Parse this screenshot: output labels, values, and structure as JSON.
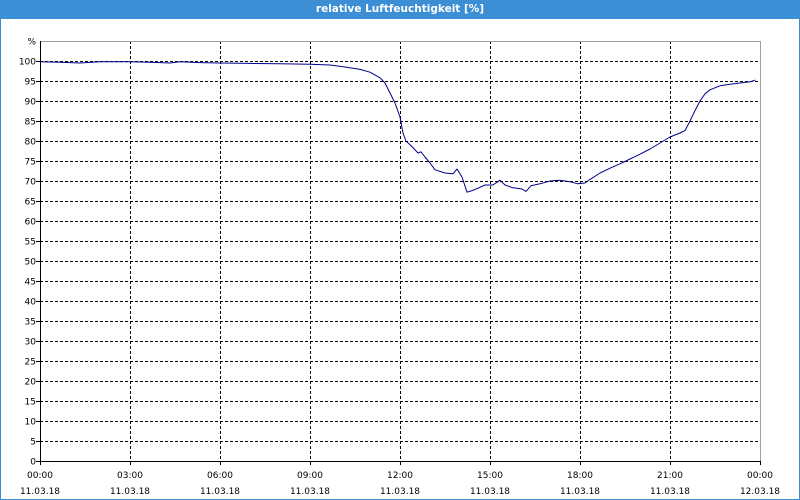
{
  "colors": {
    "title_bar": "#3c8fd4",
    "title_text": "#ffffff"
  },
  "chart_data": {
    "type": "line",
    "title": "relative Luftfeuchtigkeit [%]",
    "xlabel": "",
    "ylabel": "%",
    "xlim": [
      "11.03.18 00:00",
      "12.03.18 00:00"
    ],
    "ylim": [
      0,
      105
    ],
    "grid": true,
    "grid_style": "dashed",
    "yticks": [
      0,
      5,
      10,
      15,
      20,
      25,
      30,
      35,
      40,
      45,
      50,
      55,
      60,
      65,
      70,
      75,
      80,
      85,
      90,
      95,
      100
    ],
    "xticks": [
      {
        "time": "00:00",
        "date": "11.03.18"
      },
      {
        "time": "03:00",
        "date": "11.03.18"
      },
      {
        "time": "06:00",
        "date": "11.03.18"
      },
      {
        "time": "09:00",
        "date": "11.03.18"
      },
      {
        "time": "12:00",
        "date": "11.03.18"
      },
      {
        "time": "15:00",
        "date": "11.03.18"
      },
      {
        "time": "18:00",
        "date": "11.03.18"
      },
      {
        "time": "21:00",
        "date": "11.03.18"
      },
      {
        "time": "00:00",
        "date": "12.03.18"
      }
    ],
    "series": [
      {
        "color": "#00008b",
        "x": [
          "11.03.18 00:00",
          "11.03.18 00:40",
          "11.03.18 01:20",
          "11.03.18 02:00",
          "11.03.18 03:00",
          "11.03.18 03:40",
          "11.03.18 04:20",
          "11.03.18 04:40",
          "11.03.18 05:20",
          "11.03.18 06:00",
          "11.03.18 07:00",
          "11.03.18 08:00",
          "11.03.18 09:00",
          "11.03.18 09:40",
          "11.03.18 10:10",
          "11.03.18 10:40",
          "11.03.18 11:00",
          "11.03.18 11:20",
          "11.03.18 11:30",
          "11.03.18 11:40",
          "11.03.18 11:50",
          "11.03.18 12:00",
          "11.03.18 12:06",
          "11.03.18 12:12",
          "11.03.18 12:24",
          "11.03.18 12:36",
          "11.03.18 12:42",
          "11.03.18 12:50",
          "11.03.18 13:00",
          "11.03.18 13:10",
          "11.03.18 13:30",
          "11.03.18 13:46",
          "11.03.18 13:54",
          "11.03.18 14:04",
          "11.03.18 14:14",
          "11.03.18 14:24",
          "11.03.18 14:36",
          "11.03.18 14:50",
          "11.03.18 15:06",
          "11.03.18 15:20",
          "11.03.18 15:30",
          "11.03.18 15:46",
          "11.03.18 16:04",
          "11.03.18 16:12",
          "11.03.18 16:22",
          "11.03.18 16:40",
          "11.03.18 17:00",
          "11.03.18 17:20",
          "11.03.18 17:40",
          "11.03.18 17:56",
          "11.03.18 18:10",
          "11.03.18 18:20",
          "11.03.18 18:40",
          "11.03.18 19:00",
          "11.03.18 19:20",
          "11.03.18 19:40",
          "11.03.18 20:00",
          "11.03.18 20:20",
          "11.03.18 20:40",
          "11.03.18 21:00",
          "11.03.18 21:20",
          "11.03.18 21:30",
          "11.03.18 21:40",
          "11.03.18 21:50",
          "11.03.18 22:00",
          "11.03.18 22:10",
          "11.03.18 22:20",
          "11.03.18 22:40",
          "11.03.18 23:00",
          "11.03.18 23:20",
          "11.03.18 23:40",
          "11.03.18 23:50"
        ],
        "y": [
          99.8,
          99.7,
          99.5,
          99.8,
          99.8,
          99.7,
          99.5,
          99.8,
          99.6,
          99.5,
          99.4,
          99.3,
          99.2,
          99.0,
          98.5,
          97.9,
          97.2,
          95.8,
          94.5,
          92.0,
          89.5,
          86.0,
          82.0,
          80.0,
          78.6,
          77.0,
          77.3,
          76.0,
          74.5,
          72.8,
          72.0,
          71.8,
          73.0,
          71.0,
          67.2,
          67.6,
          68.2,
          69.0,
          69.0,
          70.2,
          69.0,
          68.3,
          68.0,
          67.4,
          68.8,
          69.3,
          70.0,
          70.2,
          69.8,
          69.3,
          69.5,
          70.4,
          72.0,
          73.2,
          74.3,
          75.5,
          76.7,
          78.0,
          79.5,
          81.0,
          82.0,
          82.6,
          85.0,
          87.6,
          90.0,
          91.8,
          92.8,
          93.8,
          94.2,
          94.5,
          94.8,
          95.2
        ]
      }
    ]
  }
}
